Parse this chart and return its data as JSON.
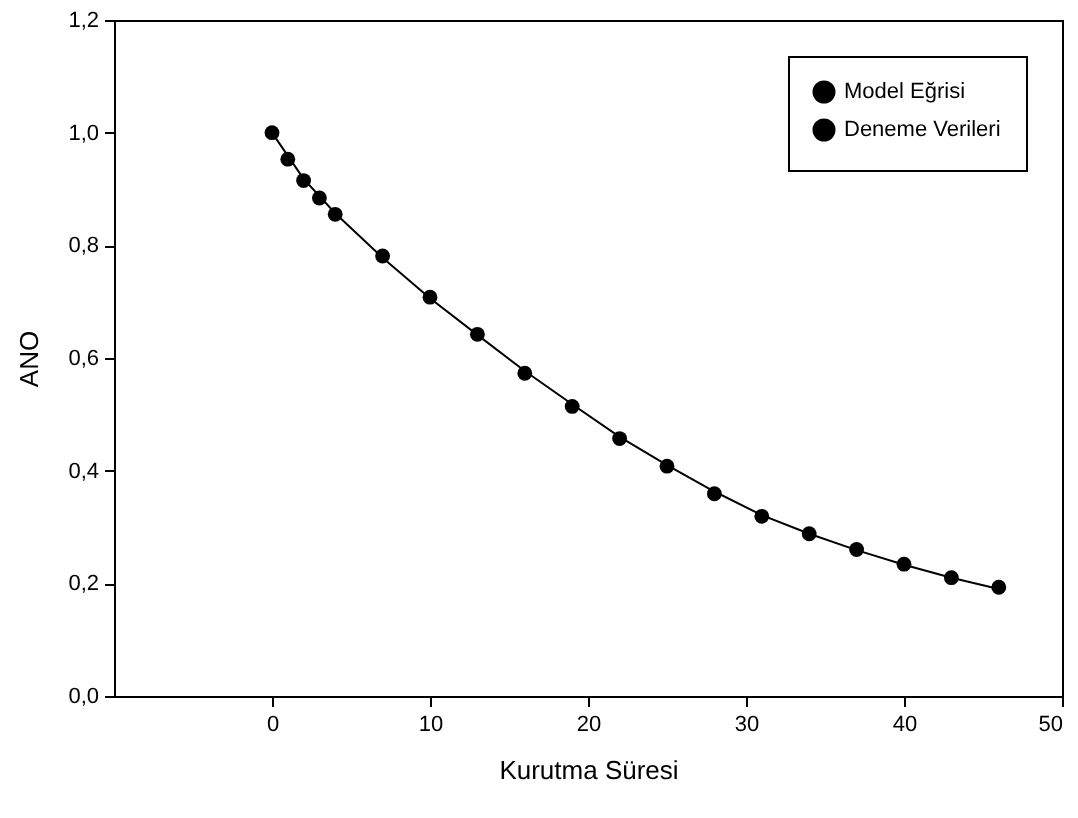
{
  "chart_data": {
    "type": "scatter",
    "xlabel": "Kurutma Süresi",
    "ylabel": "ANO",
    "xlim": [
      -10,
      50
    ],
    "xticks": [
      0,
      10,
      20,
      30,
      40,
      50
    ],
    "ylim": [
      0,
      1.2
    ],
    "yticks": [
      {
        "value": 0,
        "label": "0,0"
      },
      {
        "value": 0.2,
        "label": "0,2"
      },
      {
        "value": 0.4,
        "label": "0,4"
      },
      {
        "value": 0.6,
        "label": "0,6"
      },
      {
        "value": 0.8,
        "label": "0,8"
      },
      {
        "value": 1,
        "label": "1,0"
      },
      {
        "value": 1.2,
        "label": "1,2"
      }
    ],
    "grid": false,
    "legend": "top right",
    "series": [
      {
        "name": "Model Eğrisi",
        "type": "line",
        "marker": "none",
        "line_style": "solid",
        "color": "#000000",
        "x": [
          0,
          2,
          4,
          7,
          10,
          13,
          16,
          19,
          22,
          25,
          28,
          31,
          34,
          37,
          40,
          43,
          46
        ],
        "values": [
          1.0,
          0.918,
          0.857,
          0.778,
          0.706,
          0.641,
          0.577,
          0.518,
          0.46,
          0.41,
          0.363,
          0.321,
          0.288,
          0.259,
          0.233,
          0.21,
          0.19
        ]
      },
      {
        "name": "Deneme Verileri",
        "marker": "circle",
        "color": "#000000",
        "x": [
          0,
          1,
          2,
          3,
          4,
          7,
          10,
          13,
          16,
          19,
          22,
          25,
          28,
          31,
          34,
          37,
          40,
          43,
          46
        ],
        "values": [
          1.0,
          0.953,
          0.915,
          0.884,
          0.855,
          0.781,
          0.708,
          0.642,
          0.573,
          0.514,
          0.457,
          0.408,
          0.359,
          0.319,
          0.288,
          0.26,
          0.234,
          0.21,
          0.193
        ]
      }
    ]
  }
}
